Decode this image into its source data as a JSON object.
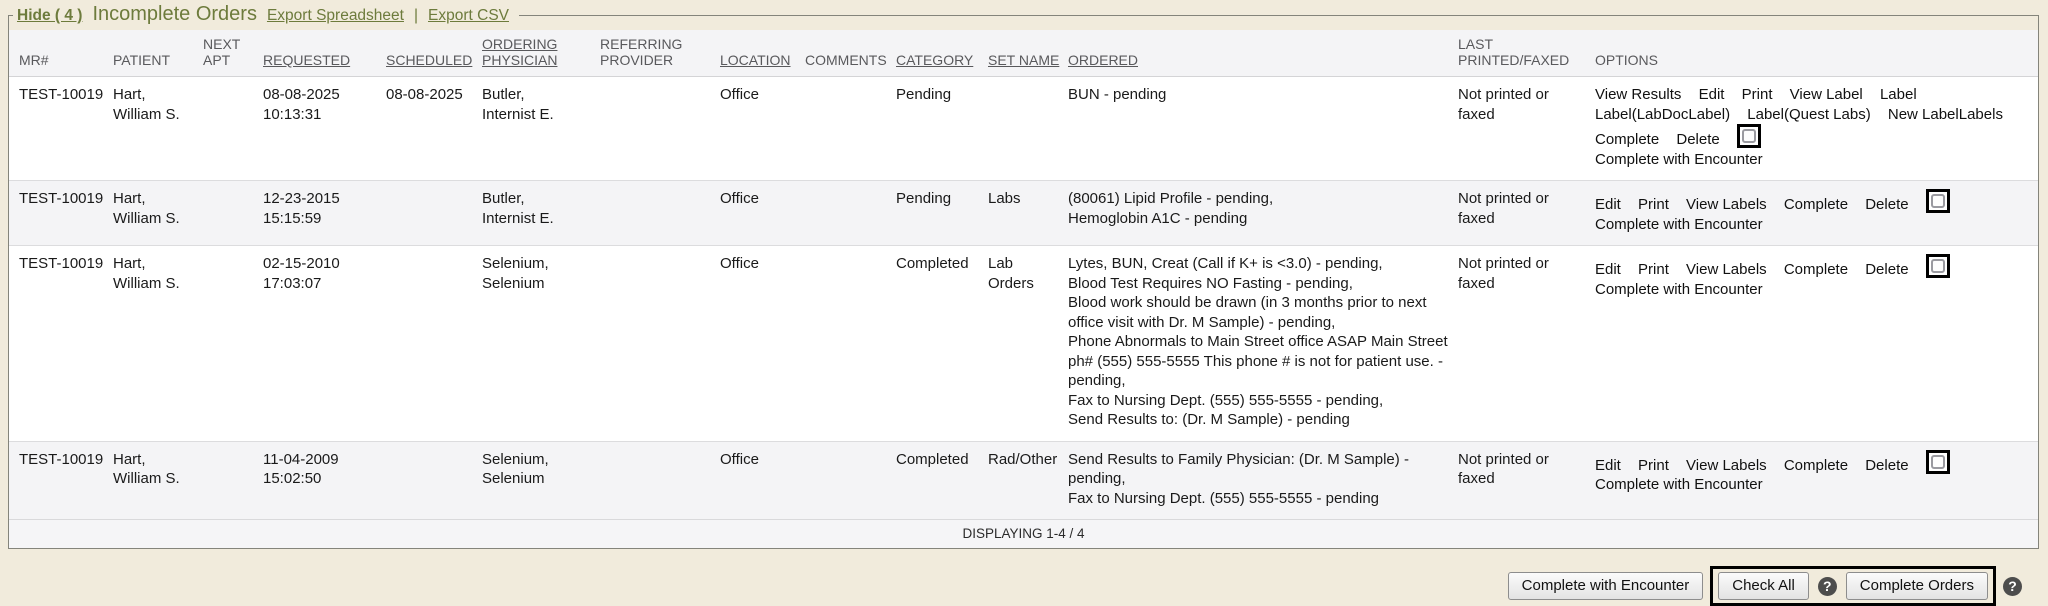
{
  "colors": {
    "page_bg": "#f1ebdc",
    "title_green": "#6d7b3c",
    "highlight_border": "#000000",
    "alt_row_bg": "#f4f4f6"
  },
  "header": {
    "hide_label": "Hide ( 4 )",
    "title": "Incomplete Orders",
    "export_spreadsheet": "Export Spreadsheet",
    "separator": "|",
    "export_csv": "Export CSV"
  },
  "table": {
    "columns": [
      {
        "label": "MR#",
        "sortable": false
      },
      {
        "label": "PATIENT",
        "sortable": false
      },
      {
        "label": "NEXT\nAPT",
        "sortable": false
      },
      {
        "label": "REQUESTED",
        "sortable": true
      },
      {
        "label": "SCHEDULED",
        "sortable": true
      },
      {
        "label": "ORDERING\nPHYSICIAN",
        "sortable": true
      },
      {
        "label": "REFERRING\nPROVIDER",
        "sortable": false
      },
      {
        "label": "LOCATION",
        "sortable": true
      },
      {
        "label": "COMMENTS",
        "sortable": false
      },
      {
        "label": "CATEGORY",
        "sortable": true
      },
      {
        "label": "SET NAME",
        "sortable": true
      },
      {
        "label": "ORDERED",
        "sortable": true
      },
      {
        "label": "LAST\nPRINTED/FAXED",
        "sortable": false
      },
      {
        "label": "OPTIONS",
        "sortable": false
      }
    ],
    "rows": [
      {
        "mr": "TEST-10019",
        "patient": "Hart,\nWilliam S.",
        "next_apt": "",
        "requested": "08-08-2025\n10:13:31",
        "scheduled": "08-08-2025",
        "ordering_physician": "Butler,\nInternist E.",
        "referring_provider": "",
        "location": "Office",
        "comments": "",
        "category": "Pending",
        "set_name": "",
        "ordered": [
          "BUN - pending"
        ],
        "last_printed": "Not printed or faxed",
        "options": [
          "View Results",
          "Edit",
          "Print",
          "View Label",
          "Label",
          "Label(LabDocLabel)",
          "Label(Quest Labs)",
          "New LabelLabels",
          "Complete",
          "Delete"
        ],
        "options_footer": "Complete with Encounter"
      },
      {
        "mr": "TEST-10019",
        "patient": "Hart,\nWilliam S.",
        "next_apt": "",
        "requested": "12-23-2015\n15:15:59",
        "scheduled": "",
        "ordering_physician": "Butler,\nInternist E.",
        "referring_provider": "",
        "location": "Office",
        "comments": "",
        "category": "Pending",
        "set_name": "Labs",
        "ordered": [
          "(80061) Lipid Profile - pending,",
          "Hemoglobin A1C - pending"
        ],
        "last_printed": "Not printed or faxed",
        "options": [
          "Edit",
          "Print",
          "View Labels",
          "Complete",
          "Delete"
        ],
        "options_footer": "Complete with Encounter"
      },
      {
        "mr": "TEST-10019",
        "patient": "Hart,\nWilliam S.",
        "next_apt": "",
        "requested": "02-15-2010\n17:03:07",
        "scheduled": "",
        "ordering_physician": "Selenium,\nSelenium",
        "referring_provider": "",
        "location": "Office",
        "comments": "",
        "category": "Completed",
        "set_name": "Lab Orders",
        "ordered": [
          "Lytes, BUN, Creat (Call if K+ is <3.0) - pending,",
          "Blood Test Requires NO Fasting - pending,",
          "Blood work should be drawn (in 3 months prior to next office visit with Dr. M Sample) - pending,",
          "Phone Abnormals to Main Street office ASAP Main Street ph# (555) 555-5555 This phone # is not for patient use. - pending,",
          "Fax to Nursing Dept. (555) 555-5555 - pending,",
          "Send Results to: (Dr. M Sample) - pending"
        ],
        "last_printed": "Not printed or faxed",
        "options": [
          "Edit",
          "Print",
          "View Labels",
          "Complete",
          "Delete"
        ],
        "options_footer": "Complete with Encounter"
      },
      {
        "mr": "TEST-10019",
        "patient": "Hart,\nWilliam S.",
        "next_apt": "",
        "requested": "11-04-2009\n15:02:50",
        "scheduled": "",
        "ordering_physician": "Selenium,\nSelenium",
        "referring_provider": "",
        "location": "Office",
        "comments": "",
        "category": "Completed",
        "set_name": "Rad/Other",
        "ordered": [
          "Send Results to Family Physician: (Dr. M Sample) - pending,",
          "Fax to Nursing Dept. (555) 555-5555 - pending"
        ],
        "last_printed": "Not printed or faxed",
        "options": [
          "Edit",
          "Print",
          "View Labels",
          "Complete",
          "Delete"
        ],
        "options_footer": "Complete with Encounter"
      }
    ],
    "footer_label": "DISPLAYING 1-4 / 4"
  },
  "actions": {
    "complete_with_encounter": "Complete with Encounter",
    "check_all": "Check All",
    "complete_orders": "Complete Orders",
    "help_glyph": "?"
  }
}
